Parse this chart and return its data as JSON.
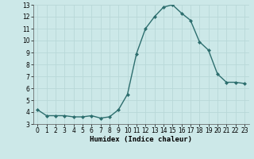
{
  "x": [
    0,
    1,
    2,
    3,
    4,
    5,
    6,
    7,
    8,
    9,
    10,
    11,
    12,
    13,
    14,
    15,
    16,
    17,
    18,
    19,
    20,
    21,
    22,
    23
  ],
  "y": [
    4.2,
    3.7,
    3.7,
    3.7,
    3.6,
    3.6,
    3.7,
    3.5,
    3.6,
    4.2,
    5.5,
    8.9,
    11.0,
    12.0,
    12.8,
    13.0,
    12.3,
    11.7,
    9.9,
    9.2,
    7.2,
    6.5,
    6.5,
    6.4
  ],
  "line_color": "#2d6e6e",
  "marker": "D",
  "marker_size": 2.0,
  "bg_color": "#cce8e8",
  "grid_color": "#b8d8d8",
  "xlabel": "Humidex (Indice chaleur)",
  "ylim": [
    3,
    13
  ],
  "xlim_min": -0.5,
  "xlim_max": 23.5,
  "yticks": [
    3,
    4,
    5,
    6,
    7,
    8,
    9,
    10,
    11,
    12,
    13
  ],
  "xticks": [
    0,
    1,
    2,
    3,
    4,
    5,
    6,
    7,
    8,
    9,
    10,
    11,
    12,
    13,
    14,
    15,
    16,
    17,
    18,
    19,
    20,
    21,
    22,
    23
  ],
  "tick_fontsize": 5.5,
  "xlabel_fontsize": 6.5
}
